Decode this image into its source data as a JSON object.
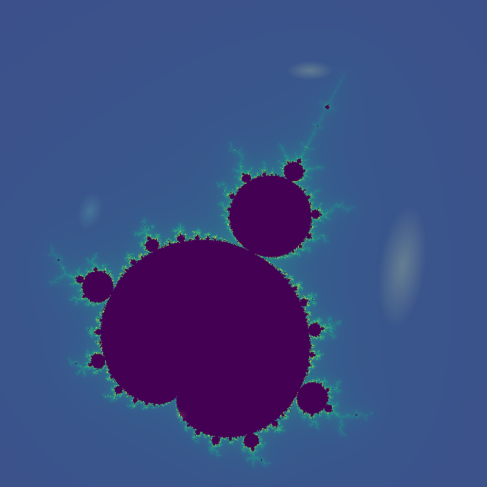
{
  "image": {
    "subject": "fractal",
    "colormap": "viridis",
    "palette": {
      "background": "#46307a",
      "halo_outer": "#3f4a8a",
      "halo_mid": "#365c8d",
      "teal": "#21918c",
      "green": "#5ec962",
      "yellow": "#fde725",
      "interior": "#440154"
    }
  }
}
